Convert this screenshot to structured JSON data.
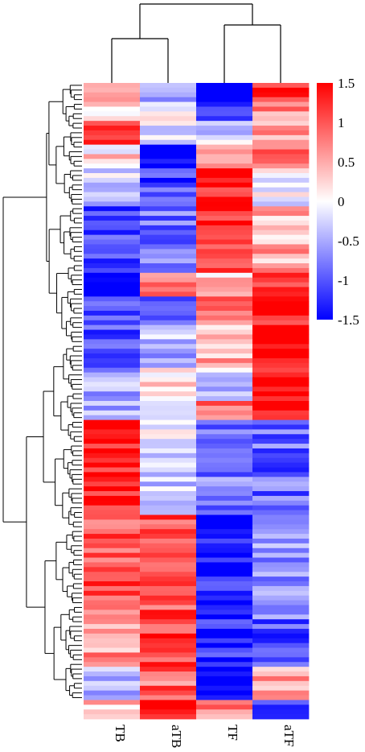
{
  "chart_data": {
    "type": "heatmap",
    "columns": [
      "TB",
      "aTB",
      "TF",
      "aTF"
    ],
    "value_range": [
      -1.5,
      1.5
    ],
    "colorbar": {
      "ticks": [
        1.5,
        1,
        0.5,
        0,
        -0.5,
        -1,
        -1.5
      ],
      "tick_labels": [
        "1.5",
        "1",
        "0.5",
        "0",
        "-0.5",
        "-1",
        "-1.5"
      ],
      "low_color": "#0000ff",
      "mid_color": "#ffffff",
      "high_color": "#ff0000"
    },
    "row_count": 130,
    "row_dendrogram": true,
    "column_dendrogram": {
      "merges": [
        [
          "TB",
          "aTB"
        ],
        [
          "TF",
          "aTF"
        ],
        [
          "TB+aTB",
          "TF+aTF"
        ]
      ]
    },
    "row_blocks": [
      {
        "rows": 4,
        "values": [
          0.5,
          -0.4,
          -1.5,
          1.2
        ]
      },
      {
        "rows": 4,
        "values": [
          0.3,
          0.2,
          -1.4,
          0.6
        ]
      },
      {
        "rows": 5,
        "values": [
          1.3,
          -0.3,
          -0.2,
          0.5
        ]
      },
      {
        "rows": 5,
        "values": [
          0.2,
          -1.6,
          0.5,
          1.0
        ]
      },
      {
        "rows": 8,
        "values": [
          -0.3,
          -1.1,
          1.4,
          -0.2
        ]
      },
      {
        "rows": 14,
        "values": [
          -1.0,
          -0.8,
          1.3,
          0.5
        ]
      },
      {
        "rows": 5,
        "values": [
          -1.6,
          0.6,
          0.3,
          1.0
        ]
      },
      {
        "rows": 6,
        "values": [
          -0.9,
          -0.8,
          0.7,
          1.4
        ]
      },
      {
        "rows": 9,
        "values": [
          -1.1,
          -0.4,
          0.5,
          1.6
        ]
      },
      {
        "rows": 7,
        "values": [
          -0.5,
          0.1,
          -0.3,
          1.5
        ]
      },
      {
        "rows": 4,
        "values": [
          -0.6,
          -0.3,
          0.9,
          1.3
        ]
      },
      {
        "rows": 20,
        "values": [
          1.4,
          -0.2,
          -0.8,
          -0.9
        ]
      },
      {
        "rows": 22,
        "values": [
          1.0,
          1.0,
          -1.3,
          -0.6
        ]
      },
      {
        "rows": 10,
        "values": [
          0.6,
          1.2,
          -1.2,
          -1.0
        ]
      },
      {
        "rows": 7,
        "values": [
          -0.6,
          0.9,
          -1.6,
          0.5
        ]
      },
      {
        "rows": 4,
        "values": [
          0.4,
          1.4,
          0.6,
          -1.0
        ]
      }
    ]
  }
}
